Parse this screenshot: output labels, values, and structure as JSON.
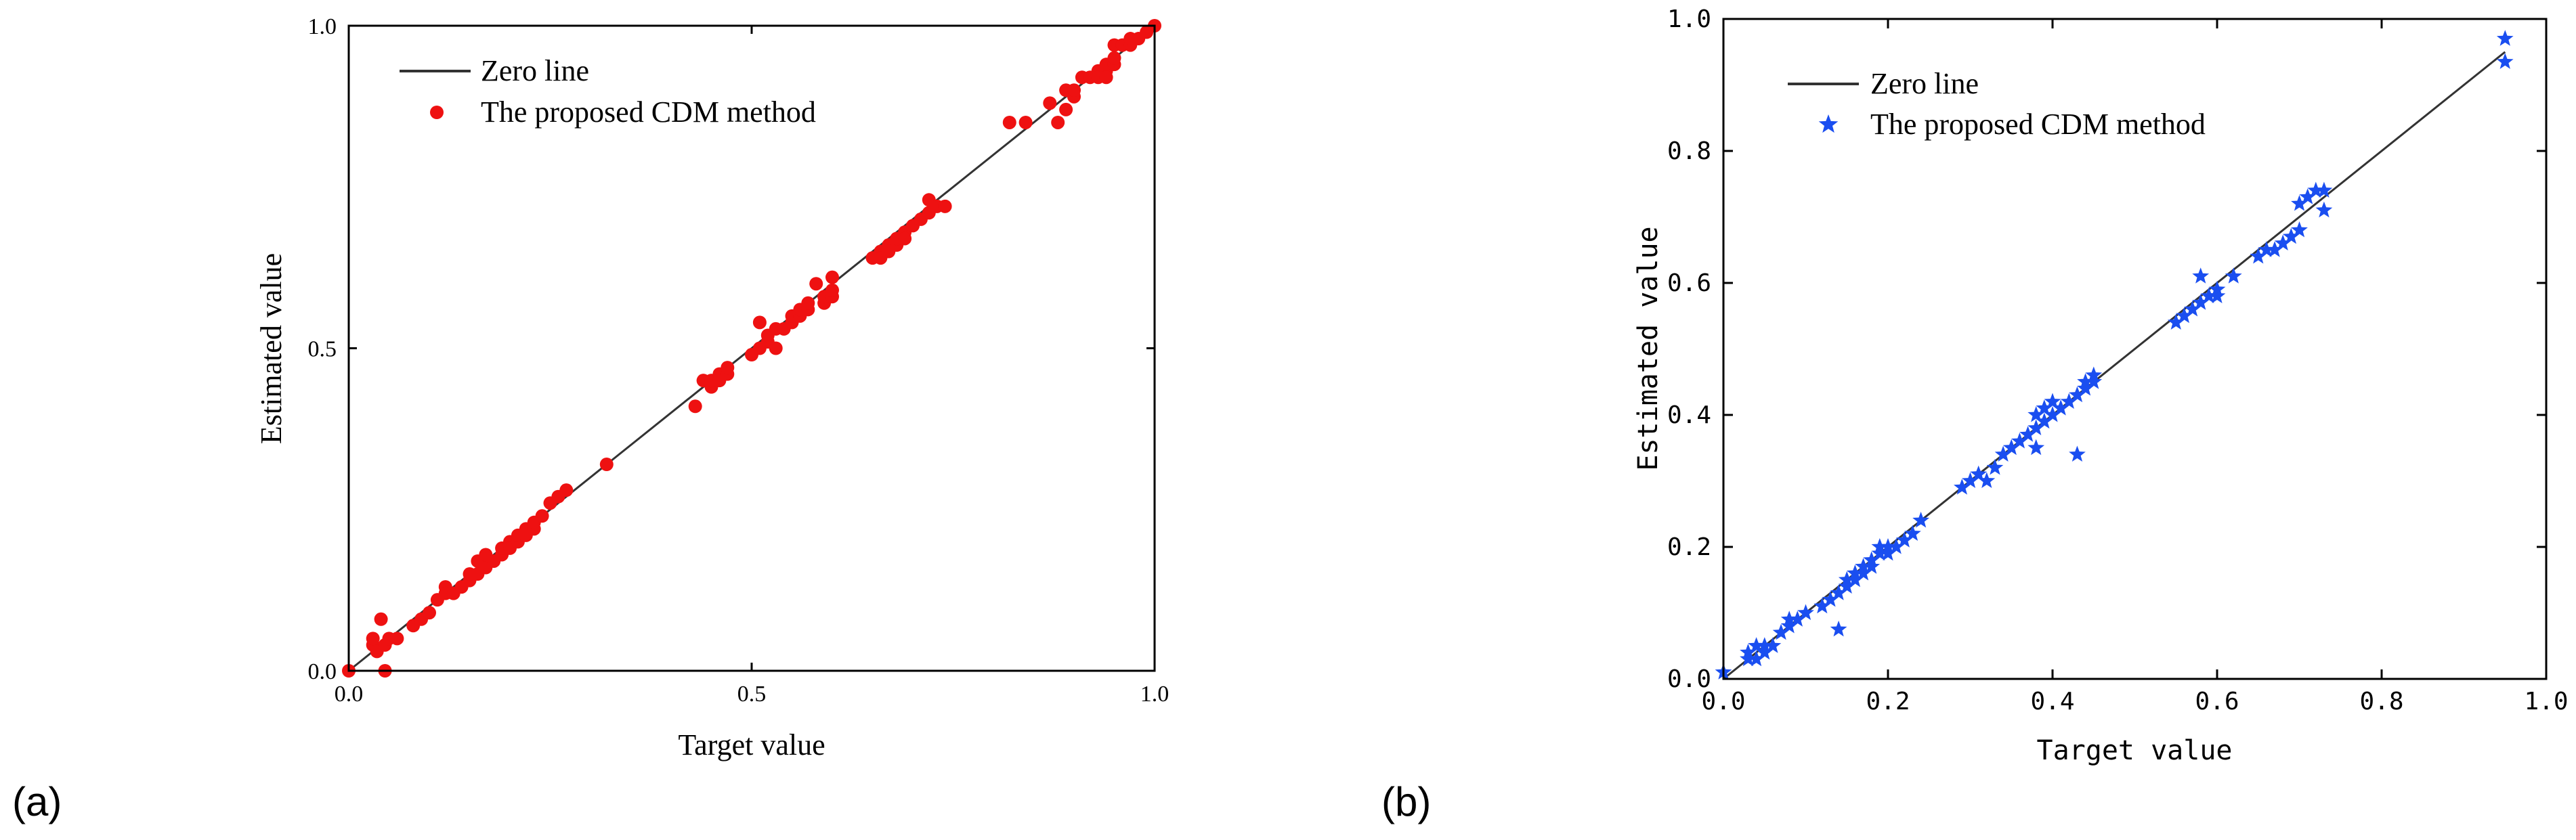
{
  "figure": {
    "panel_a_label": "(a)",
    "panel_b_label": "(b)"
  },
  "chart_data": [
    {
      "type": "scatter",
      "panel": "(a)",
      "xlabel": "Target value",
      "ylabel": "Estimated value",
      "xlim": [
        0.0,
        1.0
      ],
      "ylim": [
        0.0,
        1.0
      ],
      "xticks": [
        0.0,
        0.5,
        1.0
      ],
      "xtick_labels": [
        "0.0",
        "0.5",
        "1.0"
      ],
      "yticks": [
        0.0,
        0.5,
        1.0
      ],
      "ytick_labels": [
        "0.0",
        "0.5",
        "1.0"
      ],
      "grid": false,
      "legend_position": "top-left",
      "colors": {
        "line": "#333333",
        "marker": "#ee1111"
      },
      "series": [
        {
          "name": "Zero line",
          "kind": "line",
          "x": [
            0.0,
            1.0
          ],
          "y": [
            0.0,
            1.0
          ]
        },
        {
          "name": "The proposed CDM method",
          "kind": "scatter",
          "marker": "circle",
          "points": [
            [
              0.0,
              0.0
            ],
            [
              0.03,
              0.04
            ],
            [
              0.03,
              0.05
            ],
            [
              0.035,
              0.03
            ],
            [
              0.04,
              0.08
            ],
            [
              0.045,
              0.04
            ],
            [
              0.05,
              0.05
            ],
            [
              0.045,
              0.0
            ],
            [
              0.06,
              0.05
            ],
            [
              0.08,
              0.07
            ],
            [
              0.09,
              0.08
            ],
            [
              0.1,
              0.09
            ],
            [
              0.11,
              0.11
            ],
            [
              0.12,
              0.13
            ],
            [
              0.12,
              0.12
            ],
            [
              0.13,
              0.12
            ],
            [
              0.14,
              0.13
            ],
            [
              0.15,
              0.14
            ],
            [
              0.15,
              0.15
            ],
            [
              0.16,
              0.15
            ],
            [
              0.16,
              0.17
            ],
            [
              0.17,
              0.16
            ],
            [
              0.17,
              0.18
            ],
            [
              0.18,
              0.17
            ],
            [
              0.19,
              0.18
            ],
            [
              0.19,
              0.19
            ],
            [
              0.2,
              0.2
            ],
            [
              0.2,
              0.19
            ],
            [
              0.21,
              0.2
            ],
            [
              0.21,
              0.21
            ],
            [
              0.22,
              0.22
            ],
            [
              0.22,
              0.21
            ],
            [
              0.23,
              0.22
            ],
            [
              0.23,
              0.23
            ],
            [
              0.24,
              0.24
            ],
            [
              0.25,
              0.26
            ],
            [
              0.26,
              0.27
            ],
            [
              0.27,
              0.28
            ],
            [
              0.32,
              0.32
            ],
            [
              0.43,
              0.41
            ],
            [
              0.44,
              0.45
            ],
            [
              0.45,
              0.44
            ],
            [
              0.45,
              0.45
            ],
            [
              0.46,
              0.46
            ],
            [
              0.46,
              0.45
            ],
            [
              0.47,
              0.46
            ],
            [
              0.47,
              0.47
            ],
            [
              0.5,
              0.49
            ],
            [
              0.51,
              0.5
            ],
            [
              0.51,
              0.54
            ],
            [
              0.52,
              0.51
            ],
            [
              0.52,
              0.52
            ],
            [
              0.53,
              0.5
            ],
            [
              0.53,
              0.53
            ],
            [
              0.54,
              0.53
            ],
            [
              0.55,
              0.54
            ],
            [
              0.55,
              0.55
            ],
            [
              0.56,
              0.55
            ],
            [
              0.56,
              0.56
            ],
            [
              0.57,
              0.56
            ],
            [
              0.57,
              0.57
            ],
            [
              0.58,
              0.6
            ],
            [
              0.59,
              0.57
            ],
            [
              0.59,
              0.58
            ],
            [
              0.6,
              0.58
            ],
            [
              0.6,
              0.59
            ],
            [
              0.6,
              0.61
            ],
            [
              0.65,
              0.64
            ],
            [
              0.66,
              0.65
            ],
            [
              0.66,
              0.64
            ],
            [
              0.67,
              0.66
            ],
            [
              0.67,
              0.65
            ],
            [
              0.68,
              0.66
            ],
            [
              0.68,
              0.67
            ],
            [
              0.69,
              0.68
            ],
            [
              0.69,
              0.67
            ],
            [
              0.7,
              0.69
            ],
            [
              0.71,
              0.7
            ],
            [
              0.72,
              0.71
            ],
            [
              0.72,
              0.73
            ],
            [
              0.73,
              0.72
            ],
            [
              0.74,
              0.72
            ],
            [
              0.82,
              0.85
            ],
            [
              0.84,
              0.85
            ],
            [
              0.87,
              0.88
            ],
            [
              0.88,
              0.85
            ],
            [
              0.89,
              0.87
            ],
            [
              0.89,
              0.9
            ],
            [
              0.9,
              0.89
            ],
            [
              0.9,
              0.9
            ],
            [
              0.91,
              0.92
            ],
            [
              0.92,
              0.92
            ],
            [
              0.93,
              0.93
            ],
            [
              0.93,
              0.92
            ],
            [
              0.94,
              0.93
            ],
            [
              0.94,
              0.94
            ],
            [
              0.94,
              0.92
            ],
            [
              0.95,
              0.94
            ],
            [
              0.95,
              0.95
            ],
            [
              0.95,
              0.97
            ],
            [
              0.96,
              0.97
            ],
            [
              0.97,
              0.97
            ],
            [
              0.97,
              0.98
            ],
            [
              0.98,
              0.98
            ],
            [
              0.99,
              0.99
            ],
            [
              1.0,
              1.0
            ]
          ]
        }
      ]
    },
    {
      "type": "scatter",
      "panel": "(b)",
      "xlabel": "Target value",
      "ylabel": "Estimated value",
      "xlim": [
        0.0,
        1.0
      ],
      "ylim": [
        0.0,
        1.0
      ],
      "xticks": [
        0.0,
        0.2,
        0.4,
        0.6,
        0.8,
        1.0
      ],
      "xtick_labels": [
        "0.0",
        "0.2",
        "0.4",
        "0.6",
        "0.8",
        "1.0"
      ],
      "yticks": [
        0.0,
        0.2,
        0.4,
        0.6,
        0.8,
        1.0
      ],
      "ytick_labels": [
        "0.0",
        "0.2",
        "0.4",
        "0.6",
        "0.8",
        "1.0"
      ],
      "grid": false,
      "legend_position": "top-left",
      "colors": {
        "line": "#333333",
        "marker": "#1a4ef0"
      },
      "series": [
        {
          "name": "Zero line",
          "kind": "line",
          "x": [
            0.0,
            0.95
          ],
          "y": [
            0.0,
            0.95
          ]
        },
        {
          "name": "The proposed CDM method",
          "kind": "scatter",
          "marker": "star",
          "points": [
            [
              0.0,
              0.01
            ],
            [
              0.03,
              0.04
            ],
            [
              0.03,
              0.03
            ],
            [
              0.04,
              0.05
            ],
            [
              0.04,
              0.03
            ],
            [
              0.05,
              0.04
            ],
            [
              0.05,
              0.05
            ],
            [
              0.06,
              0.05
            ],
            [
              0.07,
              0.07
            ],
            [
              0.08,
              0.08
            ],
            [
              0.08,
              0.09
            ],
            [
              0.09,
              0.09
            ],
            [
              0.1,
              0.1
            ],
            [
              0.12,
              0.11
            ],
            [
              0.13,
              0.12
            ],
            [
              0.14,
              0.13
            ],
            [
              0.14,
              0.075
            ],
            [
              0.15,
              0.14
            ],
            [
              0.15,
              0.15
            ],
            [
              0.16,
              0.15
            ],
            [
              0.16,
              0.16
            ],
            [
              0.17,
              0.16
            ],
            [
              0.17,
              0.17
            ],
            [
              0.18,
              0.17
            ],
            [
              0.18,
              0.18
            ],
            [
              0.19,
              0.19
            ],
            [
              0.19,
              0.2
            ],
            [
              0.2,
              0.19
            ],
            [
              0.2,
              0.2
            ],
            [
              0.21,
              0.2
            ],
            [
              0.22,
              0.21
            ],
            [
              0.23,
              0.22
            ],
            [
              0.24,
              0.24
            ],
            [
              0.29,
              0.29
            ],
            [
              0.3,
              0.3
            ],
            [
              0.31,
              0.31
            ],
            [
              0.32,
              0.3
            ],
            [
              0.33,
              0.32
            ],
            [
              0.34,
              0.34
            ],
            [
              0.35,
              0.35
            ],
            [
              0.36,
              0.36
            ],
            [
              0.37,
              0.37
            ],
            [
              0.38,
              0.4
            ],
            [
              0.38,
              0.38
            ],
            [
              0.38,
              0.35
            ],
            [
              0.39,
              0.39
            ],
            [
              0.39,
              0.41
            ],
            [
              0.4,
              0.42
            ],
            [
              0.4,
              0.4
            ],
            [
              0.41,
              0.41
            ],
            [
              0.42,
              0.42
            ],
            [
              0.43,
              0.43
            ],
            [
              0.43,
              0.34
            ],
            [
              0.44,
              0.44
            ],
            [
              0.44,
              0.45
            ],
            [
              0.45,
              0.46
            ],
            [
              0.45,
              0.45
            ],
            [
              0.55,
              0.54
            ],
            [
              0.56,
              0.55
            ],
            [
              0.57,
              0.56
            ],
            [
              0.58,
              0.57
            ],
            [
              0.58,
              0.61
            ],
            [
              0.59,
              0.58
            ],
            [
              0.6,
              0.58
            ],
            [
              0.6,
              0.59
            ],
            [
              0.62,
              0.61
            ],
            [
              0.65,
              0.64
            ],
            [
              0.66,
              0.65
            ],
            [
              0.67,
              0.65
            ],
            [
              0.68,
              0.66
            ],
            [
              0.69,
              0.67
            ],
            [
              0.7,
              0.68
            ],
            [
              0.7,
              0.72
            ],
            [
              0.71,
              0.73
            ],
            [
              0.72,
              0.74
            ],
            [
              0.73,
              0.71
            ],
            [
              0.73,
              0.74
            ],
            [
              0.95,
              0.97
            ],
            [
              0.95,
              0.935
            ]
          ]
        }
      ]
    }
  ]
}
